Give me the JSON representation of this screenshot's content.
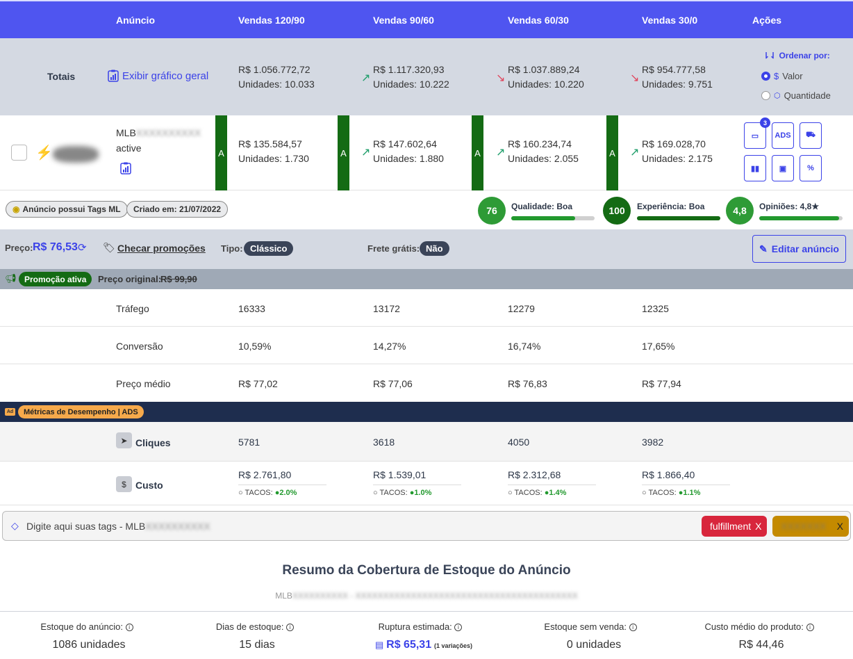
{
  "header": {
    "cols": [
      "Anúncio",
      "Vendas 120/90",
      "Vendas 90/60",
      "Vendas 60/30",
      "Vendas 30/0",
      "Ações"
    ]
  },
  "totals": {
    "label": "Totais",
    "chart_link": "Exibir gráfico geral",
    "cols": [
      {
        "value": "R$ 1.056.772,72",
        "units": "Unidades: 10.033"
      },
      {
        "value": "R$ 1.117.320,93",
        "units": "Unidades: 10.222"
      },
      {
        "value": "R$ 1.037.889,24",
        "units": "Unidades: 10.220"
      },
      {
        "value": "R$ 954.777,58",
        "units": "Unidades: 9.751"
      }
    ],
    "sort": {
      "title": "Ordenar por:",
      "opt1": "Valor",
      "opt2": "Quantidade"
    }
  },
  "item": {
    "mlb": "MLB",
    "status": "active",
    "grade": "A",
    "cols": [
      {
        "value": "R$ 135.584,57",
        "units": "Unidades: 1.730"
      },
      {
        "value": "R$ 147.602,64",
        "units": "Unidades: 1.880"
      },
      {
        "value": "R$ 160.234,74",
        "units": "Unidades: 2.055"
      },
      {
        "value": "R$ 169.028,70",
        "units": "Unidades: 2.175"
      }
    ],
    "actions": {
      "badge": "3",
      "ads": "ADS"
    }
  },
  "tags_row": {
    "tag_ml": "Anúncio possui Tags ML",
    "created": "Criado em: 21/07/2022",
    "quality": {
      "score": "76",
      "label": "Qualidade: Boa",
      "level": 0.77
    },
    "experience": {
      "score": "100",
      "label": "Experiência: Boa",
      "level": 1.0
    },
    "opinions": {
      "score": "4,8",
      "label": "Opiniões: 4,8★",
      "level": 0.96
    }
  },
  "price": {
    "label": "Preço:",
    "value": "R$ 76,53",
    "promo_link": "Checar promoções",
    "type_label": "Tipo:",
    "type_value": "Clássico",
    "free_label": "Frete grátis:",
    "free_value": "Não",
    "edit": "Editar anúncio"
  },
  "promo": {
    "badge": "Promoção ativa",
    "orig_label": "Preço original:",
    "orig_value": "R$ 99,90"
  },
  "metrics": [
    {
      "label": "Tráfego",
      "values": [
        "16333",
        "13172",
        "12279",
        "12325"
      ]
    },
    {
      "label": "Conversão",
      "values": [
        "10,59%",
        "14,27%",
        "16,74%",
        "17,65%"
      ]
    },
    {
      "label": "Preço médio",
      "values": [
        "R$ 77,02",
        "R$ 77,06",
        "R$ 76,83",
        "R$ 77,94"
      ]
    }
  ],
  "ads": {
    "ad_tag": "Ad",
    "title": "Métricas de Desempenho | ADS",
    "clicks_label": "Cliques",
    "clicks": [
      "5781",
      "3618",
      "4050",
      "3982"
    ],
    "cost_label": "Custo",
    "cost": [
      "R$ 2.761,80",
      "R$ 1.539,01",
      "R$ 2.312,68",
      "R$ 1.866,40"
    ],
    "tacos_label": "TACOS:",
    "tacos": [
      "2.0%",
      "1.0%",
      "1.4%",
      "1.1%"
    ]
  },
  "tag_input": {
    "placeholder": "Digite aqui suas tags - MLB",
    "chip1": "fulfillment",
    "chip_close": "X"
  },
  "stock": {
    "title": "Resumo da Cobertura de Estoque do Anúncio",
    "subtitle_prefix": "MLB",
    "items": [
      {
        "label": "Estoque do anúncio:",
        "value": "1086 unidades"
      },
      {
        "label": "Dias de estoque:",
        "value": "15 dias"
      },
      {
        "label": "Ruptura estimada:",
        "value": "R$ 65,31",
        "note": "(1 variações)"
      },
      {
        "label": "Estoque sem venda:",
        "value": "0 unidades"
      },
      {
        "label": "Custo médio do produto:",
        "value": "R$ 44,46"
      }
    ]
  },
  "colors": {
    "primary": "#4f55f0",
    "grade": "#146b14",
    "navy": "#1e2d4e",
    "red_chip": "#d8263c",
    "gold_chip": "#c48a00"
  }
}
